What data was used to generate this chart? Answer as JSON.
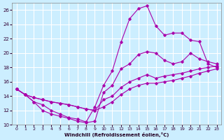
{
  "xlabel": "Windchill (Refroidissement éolien,°C)",
  "xlim": [
    -0.5,
    23.5
  ],
  "ylim": [
    10,
    27
  ],
  "xticks": [
    0,
    1,
    2,
    3,
    4,
    5,
    6,
    7,
    8,
    9,
    10,
    11,
    12,
    13,
    14,
    15,
    16,
    17,
    18,
    19,
    20,
    21,
    22,
    23
  ],
  "yticks": [
    10,
    12,
    14,
    16,
    18,
    20,
    22,
    24,
    26
  ],
  "background_color": "#cceeff",
  "grid_color": "#ffffff",
  "line_color": "#aa00aa",
  "series": [
    {
      "x": [
        0,
        1,
        2,
        3,
        4,
        5,
        6,
        7,
        8,
        9,
        10,
        11,
        12,
        13,
        14,
        15,
        16,
        17,
        18,
        19,
        20,
        21,
        22,
        23
      ],
      "y": [
        15.0,
        14.2,
        13.2,
        12.8,
        12.0,
        11.5,
        11.0,
        10.8,
        10.4,
        12.5,
        15.5,
        17.5,
        21.5,
        24.8,
        26.2,
        26.6,
        23.8,
        22.5,
        22.8,
        22.8,
        21.8,
        21.6,
        18.5,
        18.0
      ]
    },
    {
      "x": [
        0,
        1,
        2,
        3,
        4,
        5,
        6,
        7,
        8,
        9,
        10,
        11,
        12,
        13,
        14,
        15,
        16,
        17,
        18,
        19,
        20,
        21,
        22,
        23
      ],
      "y": [
        15.0,
        14.2,
        13.2,
        12.0,
        11.5,
        11.2,
        10.9,
        10.5,
        10.3,
        10.5,
        14.5,
        15.5,
        17.8,
        18.5,
        19.8,
        20.2,
        20.0,
        19.0,
        18.5,
        18.8,
        20.0,
        19.2,
        18.8,
        18.5
      ]
    },
    {
      "x": [
        0,
        1,
        2,
        3,
        4,
        5,
        6,
        7,
        8,
        9,
        10,
        11,
        12,
        13,
        14,
        15,
        16,
        17,
        18,
        19,
        20,
        21,
        22,
        23
      ],
      "y": [
        15.0,
        14.2,
        13.8,
        13.5,
        13.2,
        13.0,
        12.8,
        12.5,
        12.2,
        12.0,
        13.5,
        14.0,
        15.2,
        16.0,
        16.5,
        17.0,
        16.5,
        16.8,
        17.0,
        17.2,
        17.5,
        17.8,
        18.0,
        18.2
      ]
    },
    {
      "x": [
        0,
        1,
        2,
        3,
        4,
        5,
        6,
        7,
        8,
        9,
        10,
        11,
        12,
        13,
        14,
        15,
        16,
        17,
        18,
        19,
        20,
        21,
        22,
        23
      ],
      "y": [
        15.0,
        14.2,
        13.8,
        13.5,
        13.2,
        13.0,
        12.8,
        12.5,
        12.2,
        12.0,
        12.5,
        13.2,
        14.2,
        15.0,
        15.5,
        15.8,
        15.8,
        16.0,
        16.2,
        16.5,
        16.8,
        17.2,
        17.5,
        17.8
      ]
    }
  ]
}
